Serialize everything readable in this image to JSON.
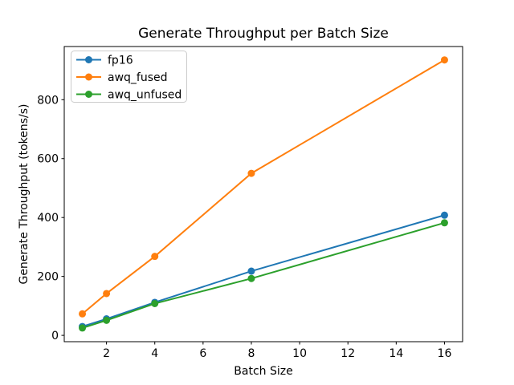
{
  "chart_data": {
    "type": "line",
    "title": "Generate Throughput per Batch Size",
    "xlabel": "Batch Size",
    "ylabel": "Generate Throughput (tokens/s)",
    "x": [
      1,
      2,
      4,
      8,
      16
    ],
    "series": [
      {
        "name": "fp16",
        "color": "#1f77b4",
        "values": [
          30,
          56,
          112,
          218,
          408
        ]
      },
      {
        "name": "awq_fused",
        "color": "#ff7f0e",
        "values": [
          73,
          142,
          268,
          550,
          935
        ]
      },
      {
        "name": "awq_unfused",
        "color": "#2ca02c",
        "values": [
          25,
          51,
          108,
          193,
          382
        ]
      }
    ],
    "xticks": [
      2,
      4,
      6,
      8,
      10,
      12,
      14,
      16
    ],
    "yticks": [
      0,
      200,
      400,
      600,
      800
    ],
    "xlim": [
      0.25,
      16.75
    ],
    "ylim": [
      -21.5,
      980.5
    ],
    "legend_position": "upper left",
    "grid": false,
    "colors": {
      "spine": "#000000",
      "legend_border": "#cccccc",
      "legend_bg": "#ffffff"
    }
  }
}
